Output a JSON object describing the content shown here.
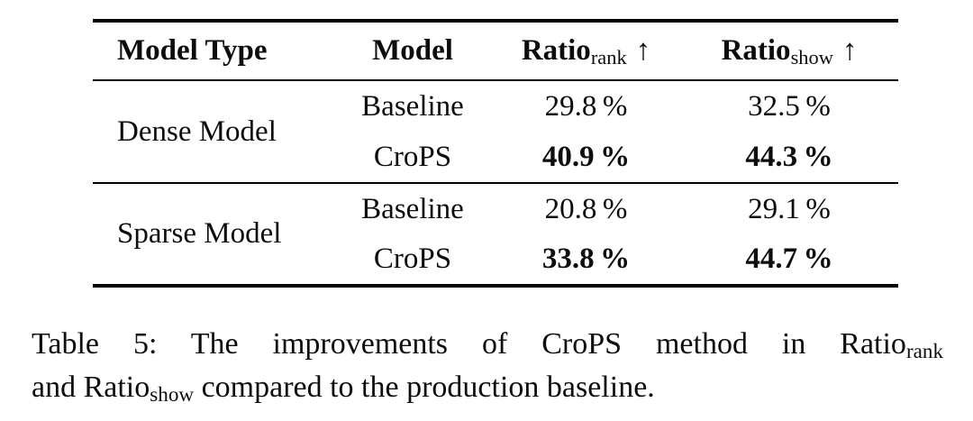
{
  "colors": {
    "background": "#ffffff",
    "text": "#0d0d0d",
    "rule": "#000000"
  },
  "table": {
    "headers": {
      "model_type": "Model Type",
      "model": "Model",
      "ratio_base": "Ratio",
      "ratio_rank_sub": "rank",
      "ratio_show_sub": "show",
      "up_arrow": "↑"
    },
    "groups": [
      {
        "model_type": "Dense Model",
        "rows": [
          {
            "model": "Baseline",
            "ratio_rank": "29.8 %",
            "ratio_show": "32.5 %",
            "emphasis": false
          },
          {
            "model": "CroPS",
            "ratio_rank": "40.9 %",
            "ratio_show": "44.3 %",
            "emphasis": true
          }
        ]
      },
      {
        "model_type": "Sparse Model",
        "rows": [
          {
            "model": "Baseline",
            "ratio_rank": "20.8 %",
            "ratio_show": "29.1 %",
            "emphasis": false
          },
          {
            "model": "CroPS",
            "ratio_rank": "33.8 %",
            "ratio_show": "44.7 %",
            "emphasis": true
          }
        ]
      }
    ]
  },
  "caption": {
    "line1_text": "Table 5: The improvements of CroPS method in Ratio",
    "line1_sub": "rank",
    "line2_text_a": "and Ratio",
    "line2_sub": "show",
    "line2_text_b": " compared to the production baseline."
  }
}
